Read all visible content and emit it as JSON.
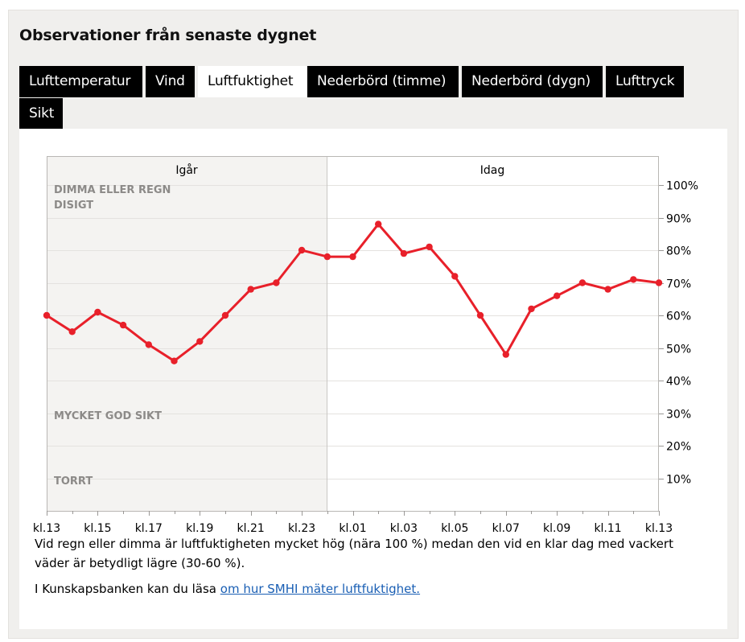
{
  "section_title": "Observationer från senaste dygnet",
  "tabs": [
    {
      "label": "Lufttemperatur",
      "active": false
    },
    {
      "label": "Vind",
      "active": false
    },
    {
      "label": "Luftfuktighet",
      "active": true
    },
    {
      "label": "Nederbörd (timme)",
      "active": false
    },
    {
      "label": "Nederbörd (dygn)",
      "active": false
    },
    {
      "label": "Lufttryck",
      "active": false
    },
    {
      "label": "Sikt",
      "active": false
    }
  ],
  "chart_data": {
    "type": "line",
    "day_labels": [
      "Igår",
      "Idag"
    ],
    "zone_labels": [
      "DIMMA ELLER REGN",
      "DISIGT",
      "MYCKET GOD SIKT",
      "TORRT"
    ],
    "x_tick_labels": [
      "kl.13",
      "kl.15",
      "kl.17",
      "kl.19",
      "kl.21",
      "kl.23",
      "kl.01",
      "kl.03",
      "kl.05",
      "kl.07",
      "kl.09",
      "kl.11",
      "kl.13"
    ],
    "y_tick_labels": [
      "10%",
      "20%",
      "30%",
      "40%",
      "50%",
      "60%",
      "70%",
      "80%",
      "90%",
      "100%"
    ],
    "ylim": [
      0,
      100
    ],
    "hours": [
      "13",
      "14",
      "15",
      "16",
      "17",
      "18",
      "19",
      "20",
      "21",
      "22",
      "23",
      "00",
      "01",
      "02",
      "03",
      "04",
      "05",
      "06",
      "07",
      "08",
      "09",
      "10",
      "11",
      "12",
      "13"
    ],
    "values": [
      60,
      55,
      61,
      57,
      51,
      46,
      52,
      60,
      68,
      70,
      80,
      78,
      78,
      88,
      79,
      81,
      72,
      60,
      48,
      62,
      66,
      70,
      68,
      71,
      70
    ],
    "series_color": "#e8202a",
    "unit": "%",
    "grid": true
  },
  "description": "Vid regn eller dimma är luftfuktigheten mycket hög (nära 100 %) medan den vid en klar dag med vackert väder är betydligt lägre (30-60 %).",
  "kb_text": "I Kunskapsbanken kan du läsa ",
  "kb_link": "om hur SMHI mäter luftfuktighet."
}
